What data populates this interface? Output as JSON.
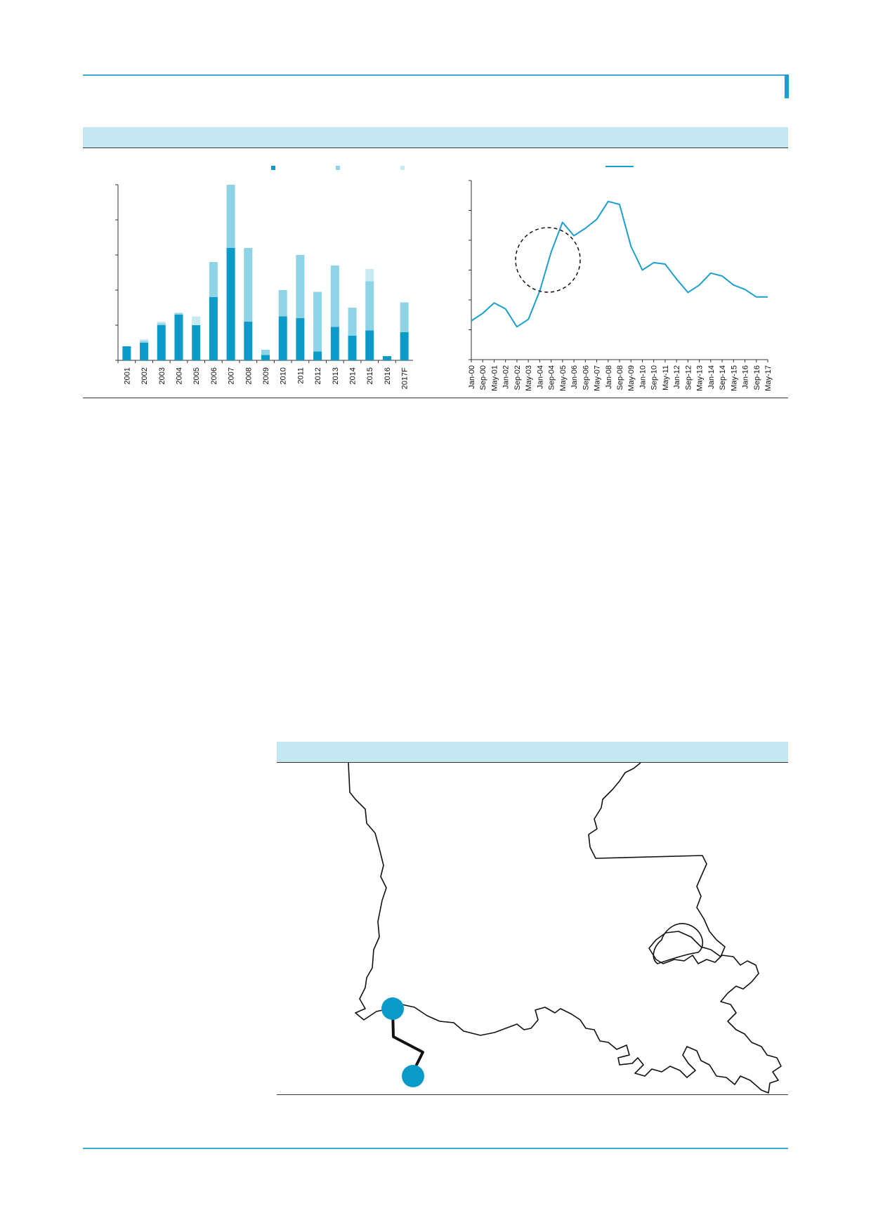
{
  "colors": {
    "accent": "#1a9fce",
    "header_band": "#c4e7f1",
    "series_dark": "#0c9ac8",
    "series_mid": "#8fd3e6",
    "series_light": "#c8e9f2",
    "line": "#1a9fce"
  },
  "chart_data": [
    {
      "type": "bar",
      "stacked": true,
      "title": "",
      "xlabel": "",
      "ylabel": "",
      "categories": [
        "2001",
        "2002",
        "2003",
        "2004",
        "2005",
        "2006",
        "2007",
        "2008",
        "2009",
        "2010",
        "2011",
        "2012",
        "2013",
        "2014",
        "2015",
        "2016",
        "2017F"
      ],
      "ylim": [
        0,
        5
      ],
      "legend": "top",
      "grid": false,
      "series": [
        {
          "values": [
            0.4,
            0.5,
            1.0,
            1.3,
            1.0,
            1.8,
            3.2,
            1.1,
            0.15,
            1.25,
            1.2,
            0.25,
            0.95,
            0.7,
            0.85,
            0.12,
            0.8
          ]
        },
        {
          "values": [
            0.0,
            0.05,
            0.05,
            0.05,
            0.0,
            1.0,
            1.8,
            2.1,
            0.15,
            0.75,
            1.8,
            1.7,
            1.75,
            0.8,
            1.4,
            0.0,
            0.85
          ]
        },
        {
          "values": [
            0.0,
            0.05,
            0.05,
            0.0,
            0.25,
            0.0,
            0.0,
            0.0,
            0.0,
            0.0,
            0.0,
            0.0,
            0.0,
            0.0,
            0.35,
            0.0,
            0.0
          ]
        }
      ]
    },
    {
      "type": "line",
      "title": "",
      "xlabel": "",
      "ylabel": "",
      "categories": [
        "Jan-00",
        "Sep-00",
        "May-01",
        "Jan-02",
        "Sep-02",
        "May-03",
        "Jan-04",
        "Sep-04",
        "May-05",
        "Jan-06",
        "Sep-06",
        "May-07",
        "Jan-08",
        "Sep-08",
        "May-09",
        "Jan-10",
        "Sep-10",
        "May-11",
        "Jan-12",
        "Sep-12",
        "May-13",
        "Jan-14",
        "Sep-14",
        "May-15",
        "Jan-16",
        "Sep-16",
        "May-17"
      ],
      "ylim": [
        0,
        6
      ],
      "legend": "top",
      "grid": false,
      "series": [
        {
          "values": [
            1.3,
            1.55,
            1.9,
            1.7,
            1.1,
            1.35,
            2.3,
            3.6,
            4.6,
            4.15,
            4.4,
            4.7,
            5.3,
            5.2,
            3.8,
            3.0,
            3.25,
            3.2,
            2.7,
            2.25,
            2.5,
            2.9,
            2.8,
            2.5,
            2.35,
            2.1,
            2.1
          ]
        }
      ]
    }
  ],
  "map": {
    "route_points": 2
  }
}
